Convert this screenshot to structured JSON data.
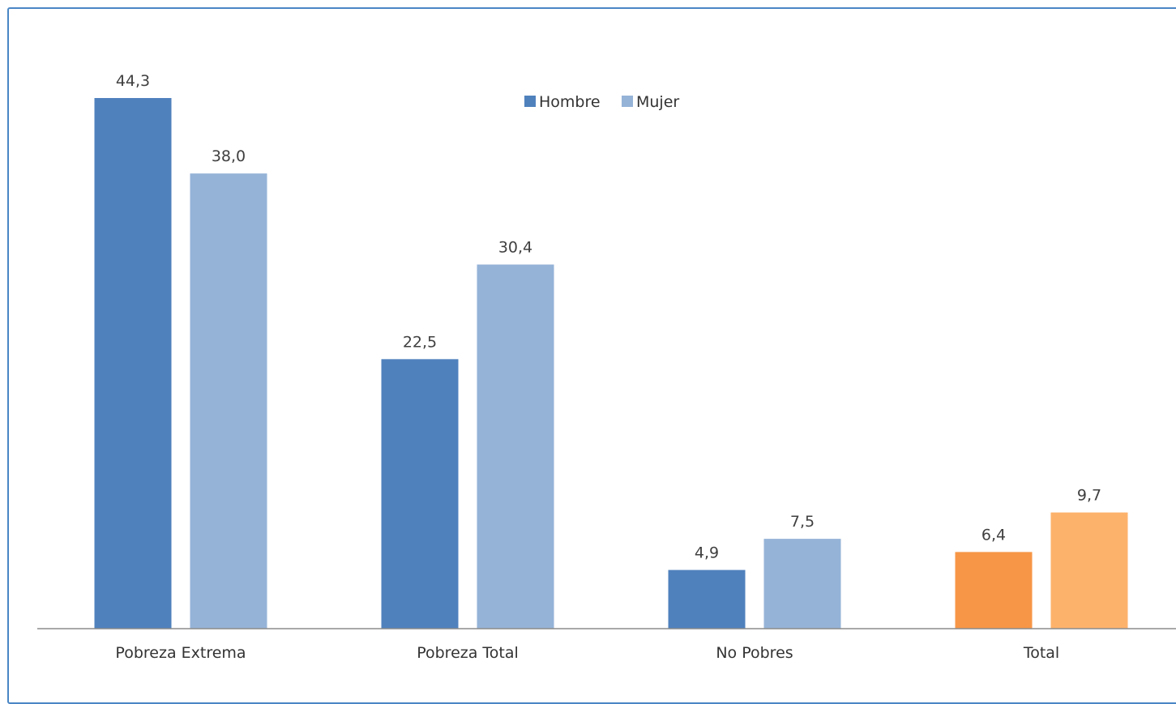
{
  "chart_data": {
    "type": "bar",
    "categories": [
      "Pobreza Extrema",
      "Pobreza Total",
      "No Pobres",
      "Total"
    ],
    "series": [
      {
        "name": "Hombre",
        "values": [
          44.3,
          22.5,
          4.9,
          6.4
        ],
        "labels": [
          "44,3",
          "22,5",
          "4,9",
          "6,4"
        ]
      },
      {
        "name": "Mujer",
        "values": [
          38.0,
          30.4,
          7.5,
          9.7
        ],
        "labels": [
          "38,0",
          "30,4",
          "7,5",
          "9,7"
        ]
      }
    ],
    "colors": {
      "hombre": "#4f81bd",
      "mujer": "#95b3d7",
      "total_hombre": "#f79646",
      "total_mujer": "#fdb26b",
      "axis": "#8c8c8c",
      "frame": "#4a86c5"
    },
    "legend": {
      "position": "top-center",
      "items": [
        "Hombre",
        "Mujer"
      ]
    },
    "title": "",
    "xlabel": "",
    "ylabel": "",
    "ylim": [
      0,
      45
    ],
    "grid": false
  }
}
